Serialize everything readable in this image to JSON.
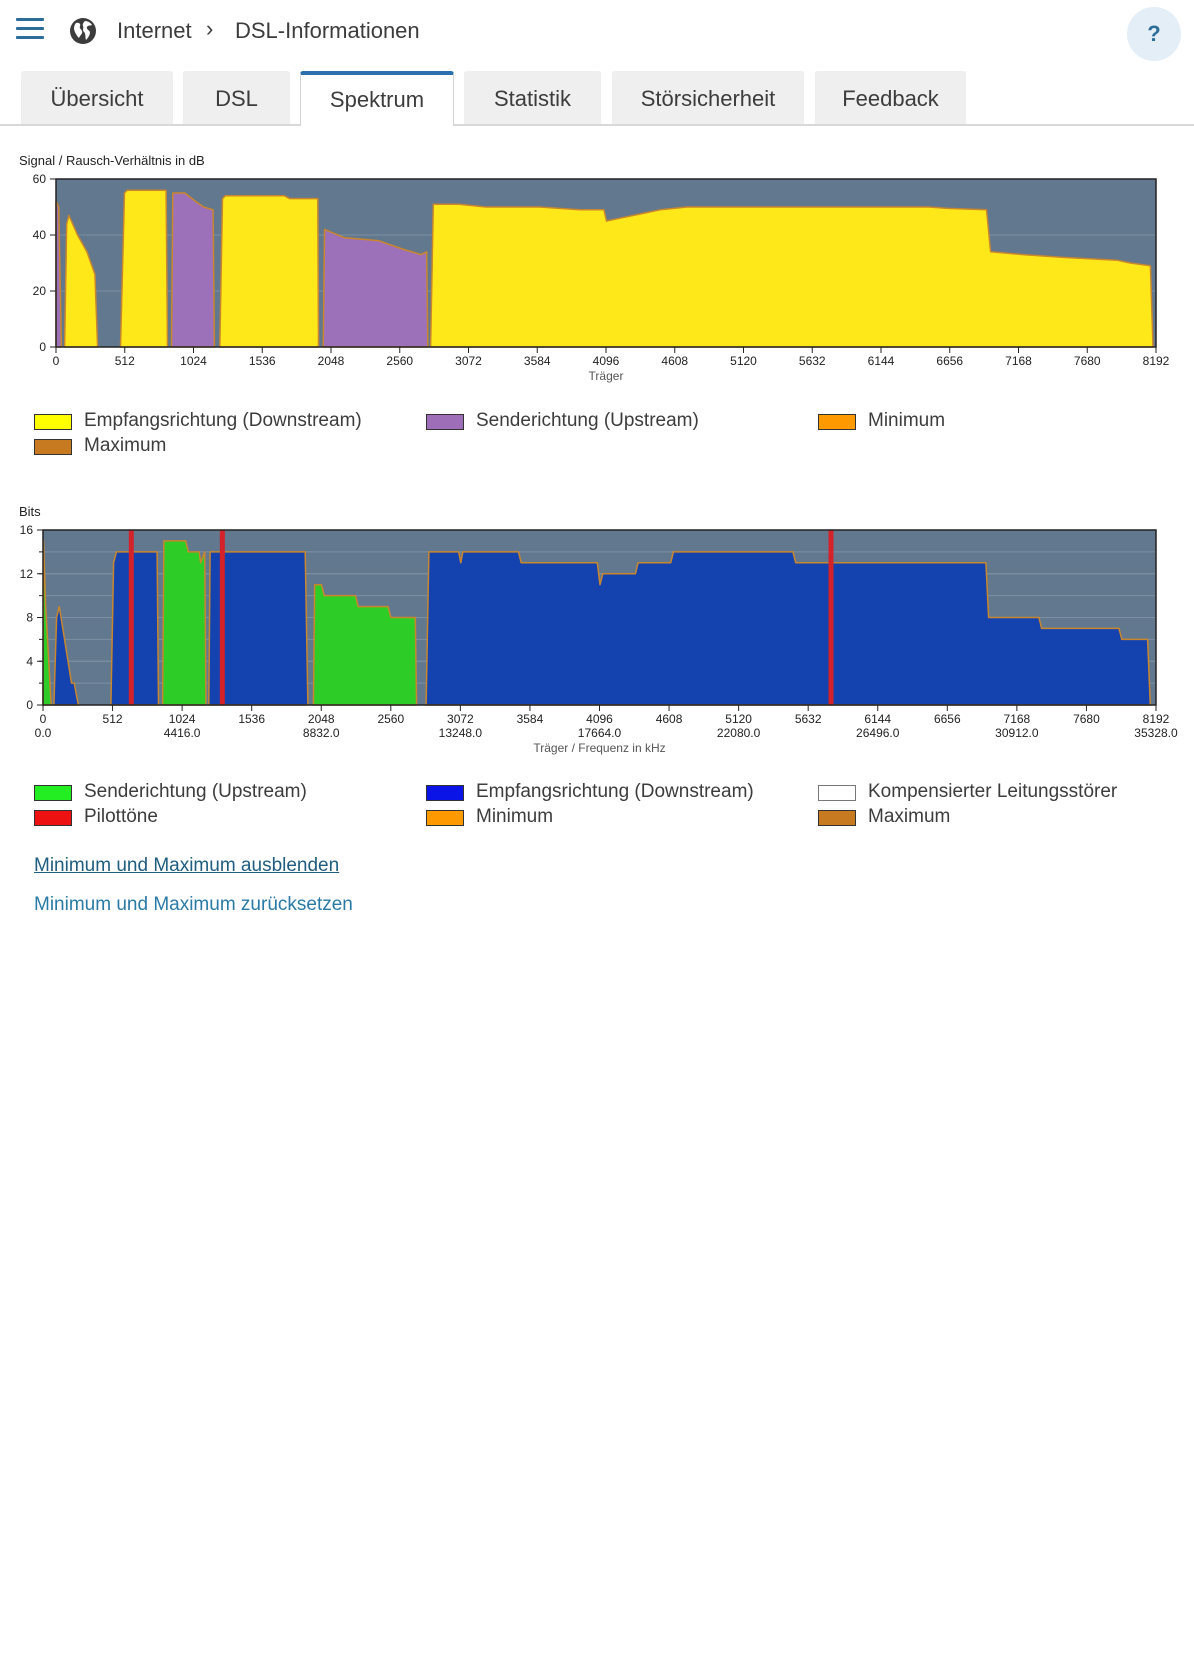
{
  "header": {
    "breadcrumb": [
      "Internet",
      "DSL-Informationen"
    ],
    "breadcrumb_separator": "›",
    "help_label": "?",
    "icons": {
      "menu": "hamburger-menu-icon",
      "section": "globe-icon",
      "help": "help-icon"
    }
  },
  "tabs": [
    {
      "label": "Übersicht",
      "active": false
    },
    {
      "label": "DSL",
      "active": false
    },
    {
      "label": "Spektrum",
      "active": true
    },
    {
      "label": "Statistik",
      "active": false
    },
    {
      "label": "Störsicherheit",
      "active": false
    },
    {
      "label": "Feedback",
      "active": false
    }
  ],
  "chart_data": [
    {
      "type": "area",
      "title": "Signal / Rausch-Verhältnis in dB",
      "ylabel": "Signal / Rausch-Verhältnis in dB",
      "xlabel": "Träger",
      "xlim": [
        0,
        8192
      ],
      "ylim": [
        0,
        60
      ],
      "yticks": [
        0,
        20,
        40,
        60
      ],
      "xticks": [
        0,
        512,
        1024,
        1536,
        2048,
        2560,
        3072,
        3584,
        4096,
        4608,
        5120,
        5632,
        6144,
        6656,
        7168,
        7680,
        8192
      ],
      "grid": true,
      "background": "#62788e",
      "series": [
        {
          "name": "Empfangsrichtung (Downstream)",
          "color": "#ffe81a",
          "segments": [
            [
              [
                64,
                0
              ],
              [
                80,
                44
              ],
              [
                96,
                47
              ],
              [
                160,
                40
              ],
              [
                230,
                34
              ],
              [
                290,
                26
              ],
              [
                310,
                0
              ]
            ],
            [
              [
                480,
                0
              ],
              [
                510,
                55
              ],
              [
                530,
                56
              ],
              [
                820,
                56
              ],
              [
                830,
                0
              ]
            ],
            [
              [
                1220,
                0
              ],
              [
                1240,
                53
              ],
              [
                1260,
                54
              ],
              [
                1700,
                54
              ],
              [
                1740,
                53
              ],
              [
                1950,
                53
              ],
              [
                1955,
                0
              ]
            ],
            [
              [
                2790,
                0
              ],
              [
                2810,
                51
              ],
              [
                3000,
                51
              ],
              [
                3200,
                50
              ],
              [
                3600,
                50
              ],
              [
                3900,
                49
              ],
              [
                4080,
                49
              ],
              [
                4100,
                45
              ],
              [
                4200,
                46
              ],
              [
                4400,
                48
              ],
              [
                4500,
                49
              ],
              [
                4700,
                50
              ],
              [
                5500,
                50
              ],
              [
                5700,
                50
              ],
              [
                6200,
                50
              ],
              [
                6500,
                50
              ],
              [
                6640,
                49.5
              ],
              [
                6930,
                49
              ],
              [
                6960,
                34
              ],
              [
                7200,
                33
              ],
              [
                7500,
                32
              ],
              [
                7900,
                31
              ],
              [
                8000,
                30
              ],
              [
                8150,
                29
              ],
              [
                8170,
                0
              ]
            ]
          ]
        },
        {
          "name": "Senderichtung (Upstream)",
          "color": "#9d71b9",
          "segments": [
            [
              [
                0,
                0
              ],
              [
                0,
                52
              ],
              [
                20,
                50
              ],
              [
                40,
                0
              ]
            ],
            [
              [
                860,
                0
              ],
              [
                870,
                55
              ],
              [
                960,
                55
              ],
              [
                1040,
                52
              ],
              [
                1100,
                50
              ],
              [
                1170,
                49
              ],
              [
                1180,
                0
              ]
            ],
            [
              [
                1990,
                0
              ],
              [
                2000,
                42
              ],
              [
                2150,
                39
              ],
              [
                2400,
                38
              ],
              [
                2580,
                35
              ],
              [
                2720,
                33
              ],
              [
                2760,
                34
              ],
              [
                2770,
                0
              ]
            ]
          ]
        }
      ],
      "legend": [
        {
          "label": "Empfangsrichtung (Downstream)",
          "color": "#ffff00"
        },
        {
          "label": "Senderichtung (Upstream)",
          "color": "#9e6fb8"
        },
        {
          "label": "Minimum",
          "color": "#ff9900"
        },
        {
          "label": "Maximum",
          "color": "#c87a20"
        }
      ]
    },
    {
      "type": "area",
      "title": "Bits",
      "ylabel": "Bits",
      "xlabel": "Träger / Frequenz in kHz",
      "xlim": [
        0,
        8192
      ],
      "ylim": [
        0,
        16
      ],
      "yticks": [
        0,
        4,
        8,
        12,
        16
      ],
      "xticks": [
        0,
        512,
        1024,
        1536,
        2048,
        2560,
        3072,
        3584,
        4096,
        4608,
        5120,
        5632,
        6144,
        6656,
        7168,
        7680,
        8192
      ],
      "xticks_secondary": [
        {
          "at": 0,
          "label": "0.0"
        },
        {
          "at": 1024,
          "label": "4416.0"
        },
        {
          "at": 2048,
          "label": "8832.0"
        },
        {
          "at": 3072,
          "label": "13248.0"
        },
        {
          "at": 4096,
          "label": "17664.0"
        },
        {
          "at": 5120,
          "label": "22080.0"
        },
        {
          "at": 6144,
          "label": "26496.0"
        },
        {
          "at": 7168,
          "label": "30912.0"
        },
        {
          "at": 8192,
          "label": "35328.0"
        }
      ],
      "grid": true,
      "background": "#62788e",
      "series": [
        {
          "name": "Empfangsrichtung (Downstream)",
          "color": "#1443b0",
          "segments": [
            [
              [
                80,
                0
              ],
              [
                100,
                8
              ],
              [
                120,
                9
              ],
              [
                210,
                2
              ],
              [
                230,
                2
              ],
              [
                260,
                0
              ]
            ],
            [
              [
                500,
                0
              ],
              [
                520,
                13
              ],
              [
                540,
                14
              ],
              [
                840,
                14
              ],
              [
                850,
                0
              ]
            ],
            [
              [
                1220,
                0
              ],
              [
                1230,
                14
              ],
              [
                1930,
                14
              ],
              [
                1950,
                0
              ]
            ],
            [
              [
                2820,
                0
              ],
              [
                2840,
                14
              ],
              [
                3060,
                14
              ],
              [
                3075,
                13
              ],
              [
                3090,
                14
              ],
              [
                3500,
                14
              ],
              [
                3520,
                13
              ],
              [
                4080,
                13
              ],
              [
                4100,
                11
              ],
              [
                4120,
                12
              ],
              [
                4360,
                12
              ],
              [
                4380,
                13
              ],
              [
                4620,
                13
              ],
              [
                4640,
                14
              ],
              [
                5520,
                14
              ],
              [
                5540,
                13
              ],
              [
                6940,
                13
              ],
              [
                6960,
                8
              ],
              [
                7330,
                8
              ],
              [
                7350,
                7
              ],
              [
                7920,
                7
              ],
              [
                7940,
                6
              ],
              [
                8130,
                6
              ],
              [
                8150,
                0
              ]
            ]
          ]
        },
        {
          "name": "Senderichtung (Upstream)",
          "color": "#2ecc27",
          "segments": [
            [
              [
                0,
                0
              ],
              [
                4,
                15
              ],
              [
                20,
                9
              ],
              [
                60,
                0
              ]
            ],
            [
              [
                880,
                0
              ],
              [
                890,
                15
              ],
              [
                1050,
                15
              ],
              [
                1070,
                14
              ],
              [
                1150,
                14
              ],
              [
                1160,
                13
              ],
              [
                1190,
                14
              ],
              [
                1200,
                0
              ]
            ],
            [
              [
                1990,
                0
              ],
              [
                2000,
                11
              ],
              [
                2050,
                11
              ],
              [
                2070,
                10
              ],
              [
                2300,
                10
              ],
              [
                2320,
                9
              ],
              [
                2540,
                9
              ],
              [
                2560,
                8
              ],
              [
                2740,
                8
              ],
              [
                2750,
                0
              ]
            ]
          ]
        }
      ],
      "pilot_tones": [
        650,
        1320,
        5800
      ],
      "pilot_color": "#d4222a",
      "legend": [
        {
          "label": "Senderichtung (Upstream)",
          "color": "#22ee22"
        },
        {
          "label": "Empfangsrichtung (Downstream)",
          "color": "#0a14e6"
        },
        {
          "label": "Kompensierter Leitungsstörer",
          "color": "#ffffff"
        },
        {
          "label": "Pilottöne",
          "color": "#ee1111"
        },
        {
          "label": "Minimum",
          "color": "#ff9900"
        },
        {
          "label": "Maximum",
          "color": "#c87a20"
        }
      ]
    }
  ],
  "links": {
    "hide_minmax": "Minimum und Maximum ausblenden",
    "reset_minmax": "Minimum und Maximum zurücksetzen"
  }
}
